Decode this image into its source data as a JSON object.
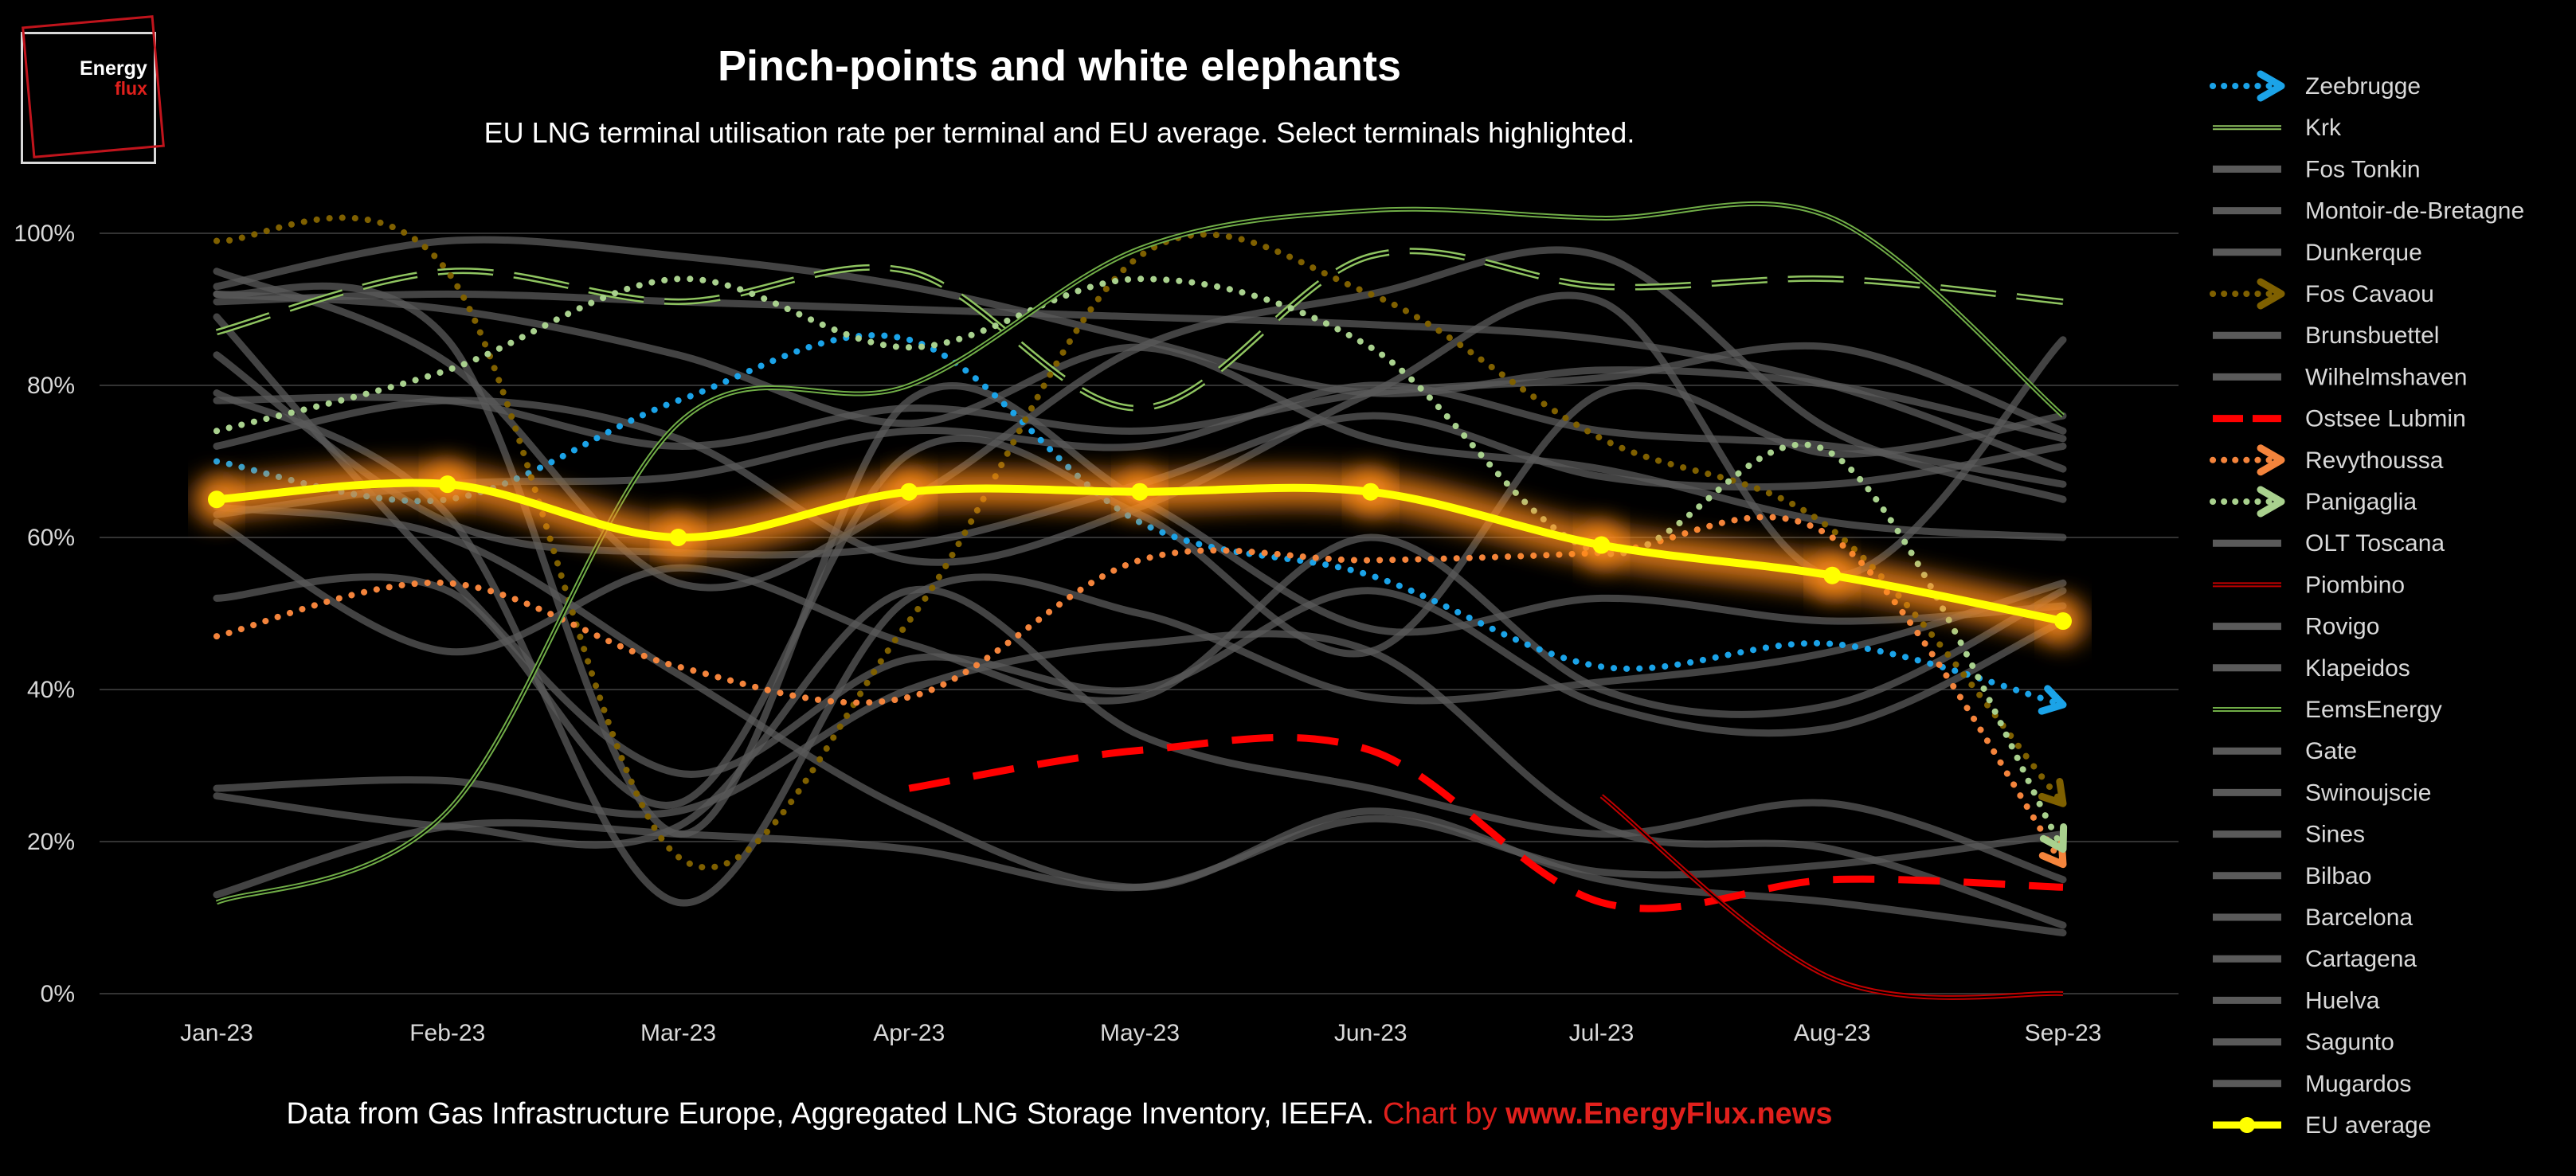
{
  "logo": {
    "line1": "Energy",
    "line2": "flux"
  },
  "title": "Pinch-points and white elephants",
  "subtitle": "EU LNG terminal utilisation rate per terminal and EU average. Select terminals highlighted.",
  "footer": {
    "source": "Data from Gas Infrastructure Europe, Aggregated LNG Storage Inventory, IEEFA.",
    "chart_by": "Chart by",
    "url": "www.EnergyFlux.news"
  },
  "colors": {
    "background": "#000000",
    "background_lines": "#5a5a5a",
    "eu_average": "#ffff00",
    "eu_glow": "#ff8c1a",
    "zeebrugge": "#1ba3e8",
    "krk": "#8fc460",
    "fos_cavaou": "#7f6000",
    "ostsee_lubmin": "#ff0000",
    "revythoussa": "#f4843c",
    "panigaglia": "#a9d18e",
    "piombino": "#c00000",
    "eemsenergy": "#70ad47"
  },
  "chart_data": {
    "type": "line",
    "title": "Pinch-points and white elephants",
    "subtitle": "EU LNG terminal utilisation rate per terminal and EU average. Select terminals highlighted.",
    "categories": [
      "Jan-23",
      "Feb-23",
      "Mar-23",
      "Apr-23",
      "May-23",
      "Jun-23",
      "Jul-23",
      "Aug-23",
      "Sep-23"
    ],
    "y_ticks": [
      "0%",
      "20%",
      "40%",
      "60%",
      "80%",
      "100%"
    ],
    "ylim": [
      0,
      100
    ],
    "y_unit": "%",
    "grid": "horizontal",
    "legend_position": "right",
    "series": [
      {
        "name": "Zeebrugge",
        "style": "dotted-arrow",
        "color": "#1ba3e8",
        "values": [
          70,
          65,
          78,
          86,
          62,
          55,
          43,
          46,
          38
        ]
      },
      {
        "name": "Krk",
        "style": "dashed-outline",
        "color": "#8fc460",
        "values": [
          87,
          95,
          91,
          95,
          77,
          97,
          93,
          94,
          91
        ]
      },
      {
        "name": "Fos Tonkin",
        "style": "gray",
        "values": [
          92,
          90,
          84,
          75,
          85,
          73,
          69,
          62,
          60
        ]
      },
      {
        "name": "Montoir-de-Bretagne",
        "style": "gray",
        "values": [
          93,
          99,
          97,
          93,
          86,
          79,
          82,
          80,
          73
        ]
      },
      {
        "name": "Dunkerque",
        "style": "gray",
        "values": [
          95,
          83,
          54,
          65,
          85,
          92,
          97,
          74,
          65
        ]
      },
      {
        "name": "Fos Cavaou",
        "style": "dotted-arrow",
        "color": "#7f6000",
        "values": [
          99,
          95,
          18,
          49,
          97,
          92,
          73,
          61,
          25
        ]
      },
      {
        "name": "Brunsbuettel",
        "style": "gray",
        "values": [
          78,
          78,
          72,
          77,
          74,
          79,
          81,
          85,
          74
        ]
      },
      {
        "name": "Wilhelmshaven",
        "style": "gray",
        "values": [
          84,
          62,
          58,
          59,
          67,
          76,
          68,
          67,
          72
        ]
      },
      {
        "name": "Ostsee Lubmin",
        "style": "dashed",
        "color": "#ff0000",
        "values": [
          null,
          null,
          null,
          27,
          32,
          32,
          12,
          15,
          14
        ]
      },
      {
        "name": "Revythoussa",
        "style": "dotted-arrow",
        "color": "#f4843c",
        "values": [
          47,
          54,
          43,
          39,
          57,
          57,
          58,
          60,
          17
        ]
      },
      {
        "name": "Panigaglia",
        "style": "dotted-arrow",
        "color": "#a9d18e",
        "values": [
          74,
          82,
          94,
          85,
          94,
          85,
          58,
          71,
          19
        ]
      },
      {
        "name": "OLT Toscana",
        "style": "gray",
        "values": [
          52,
          53,
          25,
          71,
          63,
          45,
          79,
          71,
          76
        ]
      },
      {
        "name": "Piombino",
        "style": "thin-outline",
        "color": "#c00000",
        "values": [
          null,
          null,
          null,
          null,
          null,
          null,
          26,
          2,
          0
        ]
      },
      {
        "name": "Rovigo",
        "style": "gray",
        "values": [
          91,
          92,
          91,
          90,
          89,
          88,
          86,
          80,
          69
        ]
      },
      {
        "name": "Klapeidos",
        "style": "gray",
        "values": [
          79,
          63,
          12,
          52,
          50,
          39,
          41,
          45,
          54
        ]
      },
      {
        "name": "EemsEnergy",
        "style": "solid-outline",
        "color": "#70ad47",
        "values": [
          12,
          24,
          75,
          80,
          98,
          103,
          102,
          102,
          76
        ]
      },
      {
        "name": "Gate",
        "style": "gray",
        "values": [
          92,
          86,
          21,
          78,
          65,
          48,
          52,
          49,
          51
        ]
      },
      {
        "name": "Swinoujscie",
        "style": "gray",
        "values": [
          63,
          67,
          68,
          74,
          72,
          80,
          74,
          72,
          67
        ]
      },
      {
        "name": "Sines",
        "style": "gray",
        "values": [
          26,
          22,
          22,
          53,
          34,
          27,
          21,
          25,
          15
        ]
      },
      {
        "name": "Bilbao",
        "style": "gray",
        "values": [
          27,
          28,
          24,
          40,
          46,
          45,
          22,
          19,
          9
        ]
      },
      {
        "name": "Barcelona",
        "style": "gray",
        "values": [
          64,
          60,
          42,
          24,
          14,
          24,
          15,
          12,
          8
        ]
      },
      {
        "name": "Cartagena",
        "style": "gray",
        "values": [
          62,
          45,
          56,
          46,
          39,
          60,
          40,
          38,
          53
        ]
      },
      {
        "name": "Huelva",
        "style": "gray",
        "values": [
          89,
          55,
          29,
          44,
          40,
          53,
          38,
          35,
          49
        ]
      },
      {
        "name": "Sagunto",
        "style": "gray",
        "values": [
          72,
          78,
          73,
          57,
          64,
          79,
          91,
          55,
          86
        ]
      },
      {
        "name": "Mugardos",
        "style": "gray",
        "values": [
          13,
          22,
          21,
          19,
          14,
          23,
          16,
          17,
          21
        ]
      },
      {
        "name": "EU average",
        "style": "highlight",
        "color": "#ffff00",
        "values": [
          65,
          67,
          60,
          66,
          66,
          66,
          59,
          55,
          49
        ]
      }
    ]
  }
}
